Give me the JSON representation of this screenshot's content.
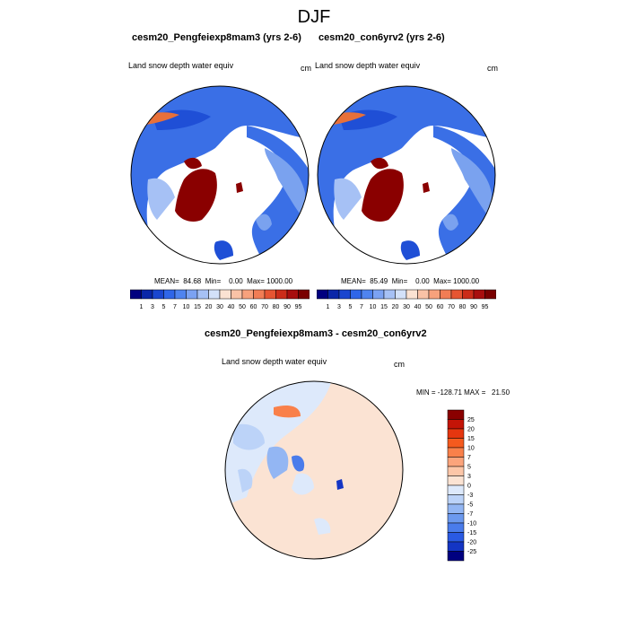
{
  "figure": {
    "title": "DJF"
  },
  "panels": [
    {
      "title": "cesm20_Pengfeiexp8mam3 (yrs 2-6)",
      "variable": "Land snow depth water equiv",
      "units": "cm",
      "stats": "MEAN=  84.68  Min=    0.00  Max= 1000.00"
    },
    {
      "title": "cesm20_con6yrv2 (yrs 2-6)",
      "variable": "Land snow depth water equiv",
      "units": "cm",
      "stats": "MEAN=  85.49  Min=    0.00  Max= 1000.00"
    },
    {
      "title": "cesm20_Pengfeiexp8mam3 - cesm20_con6yrv2",
      "variable": "Land snow depth water equiv",
      "units": "cm",
      "stats": "MIN = -128.71 MAX =   21.50"
    }
  ],
  "colorbars": {
    "absolute": {
      "labels": [
        "1",
        "3",
        "5",
        "7",
        "10",
        "15",
        "20",
        "30",
        "40",
        "50",
        "60",
        "70",
        "80",
        "90",
        "95"
      ],
      "colors": [
        "#00007f",
        "#0a26a8",
        "#1a46cf",
        "#2f66e8",
        "#4f84ef",
        "#7ba2f2",
        "#a6c1f5",
        "#d3e1f9",
        "#fbe2d2",
        "#f9c2a6",
        "#f7a17c",
        "#f17d55",
        "#e65532",
        "#cb2c19",
        "#a80e0e",
        "#7a0000"
      ]
    },
    "difference": {
      "labels": [
        "25",
        "20",
        "15",
        "10",
        "7",
        "5",
        "3",
        "0",
        "-3",
        "-5",
        "-7",
        "-10",
        "-15",
        "-20",
        "-25"
      ],
      "colors": [
        "#8a0000",
        "#c41407",
        "#e5360f",
        "#f55a1e",
        "#f9804a",
        "#fba47c",
        "#fcc6a8",
        "#fbe3d3",
        "#dde9fb",
        "#bcd3f8",
        "#93b6f3",
        "#6c99ee",
        "#4a7ceb",
        "#2a5ae3",
        "#1435c4",
        "#000080"
      ]
    }
  }
}
